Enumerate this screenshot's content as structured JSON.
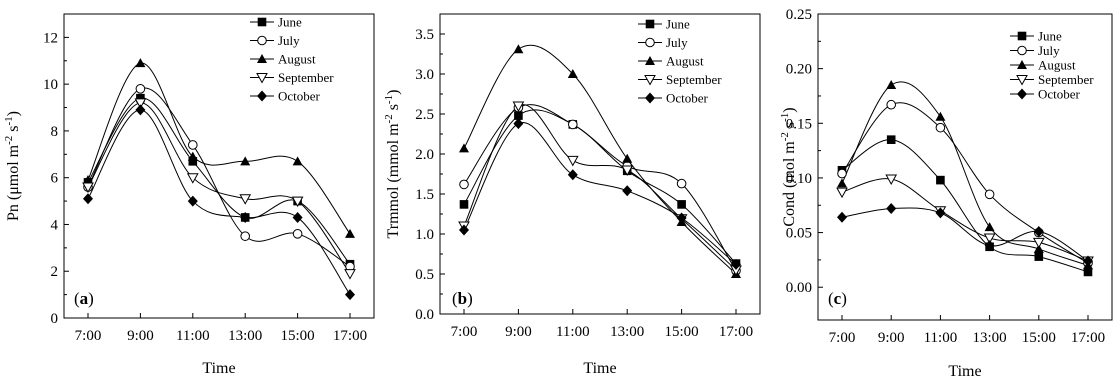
{
  "chart_data": [
    {
      "type": "line",
      "panel_label": "(a)",
      "panel_letter": "a",
      "xlabel": "Time",
      "ylabel": "Pn (μmol m-2 s-1)",
      "ylabel_parts": {
        "base": "Pn (μmol m",
        "sup1": "-2",
        "mid": " s",
        "sup2": "-1",
        "end": ")"
      },
      "categories": [
        "7:00",
        "9:00",
        "11:00",
        "13:00",
        "15:00",
        "17:00"
      ],
      "ylim": [
        0,
        13
      ],
      "yticks": [
        0,
        2,
        4,
        6,
        8,
        10,
        12
      ],
      "ytick_labels": [
        "0",
        "2",
        "4",
        "6",
        "8",
        "10",
        "12"
      ],
      "legend": {
        "position": "top-right"
      },
      "series": [
        {
          "name": "June",
          "marker": "square-filled",
          "values": [
            5.8,
            9.4,
            6.7,
            4.3,
            5.0,
            2.3
          ]
        },
        {
          "name": "July",
          "marker": "circle-open",
          "values": [
            5.6,
            9.8,
            7.4,
            3.5,
            3.6,
            2.2
          ]
        },
        {
          "name": "August",
          "marker": "triangle-up-filled",
          "values": [
            5.9,
            10.9,
            6.9,
            6.7,
            6.7,
            3.6
          ]
        },
        {
          "name": "September",
          "marker": "triangle-down-open",
          "values": [
            5.6,
            9.2,
            6.0,
            5.1,
            5.0,
            1.9
          ]
        },
        {
          "name": "October",
          "marker": "diamond-filled",
          "values": [
            5.1,
            8.9,
            5.0,
            4.3,
            4.3,
            1.0
          ]
        }
      ]
    },
    {
      "type": "line",
      "panel_label": "(b)",
      "panel_letter": "b",
      "xlabel": "Time",
      "ylabel": "Trmmol (mmol m-2 s-1)",
      "ylabel_parts": {
        "base": "Trmmol (mmol m",
        "sup1": "-2",
        "mid": " s",
        "sup2": "-1",
        "end": ")"
      },
      "categories": [
        "7:00",
        "9:00",
        "11:00",
        "13:00",
        "15:00",
        "17:00"
      ],
      "ylim": [
        0,
        3.75
      ],
      "yticks": [
        0.0,
        0.5,
        1.0,
        1.5,
        2.0,
        2.5,
        3.0,
        3.5
      ],
      "ytick_labels": [
        "0.0",
        "0.5",
        "1.0",
        "1.5",
        "2.0",
        "2.5",
        "3.0",
        "3.5"
      ],
      "legend": {
        "position": "top-right"
      },
      "series": [
        {
          "name": "June",
          "marker": "square-filled",
          "values": [
            1.37,
            2.48,
            2.37,
            1.79,
            1.37,
            0.63
          ]
        },
        {
          "name": "July",
          "marker": "circle-open",
          "values": [
            1.62,
            2.58,
            2.37,
            1.85,
            1.63,
            0.54
          ]
        },
        {
          "name": "August",
          "marker": "triangle-up-filled",
          "values": [
            2.07,
            3.31,
            3.0,
            1.94,
            1.15,
            0.5
          ]
        },
        {
          "name": "September",
          "marker": "triangle-down-open",
          "values": [
            1.1,
            2.6,
            1.92,
            1.8,
            1.19,
            0.55
          ]
        },
        {
          "name": "October",
          "marker": "diamond-filled",
          "values": [
            1.05,
            2.38,
            1.74,
            1.54,
            1.2,
            0.62
          ]
        }
      ]
    },
    {
      "type": "line",
      "panel_label": "(c)",
      "panel_letter": "c",
      "xlabel": "Time",
      "ylabel": "Cond (mol m-2 s-1)",
      "ylabel_parts": {
        "base": "Cond (mol m",
        "sup1": "-2",
        "mid": " s",
        "sup2": "-1",
        "end": ")"
      },
      "categories": [
        "7:00",
        "9:00",
        "11:00",
        "13:00",
        "15:00",
        "17:00"
      ],
      "ylim": [
        -0.03,
        0.25
      ],
      "yticks": [
        0.0,
        0.05,
        0.1,
        0.15,
        0.2,
        0.25
      ],
      "ytick_labels": [
        "0.00",
        "0.05",
        "0.10",
        "0.15",
        "0.20",
        "0.25"
      ],
      "legend": {
        "position": "top-right"
      },
      "series": [
        {
          "name": "June",
          "marker": "square-filled",
          "values": [
            0.107,
            0.135,
            0.098,
            0.037,
            0.028,
            0.014
          ]
        },
        {
          "name": "July",
          "marker": "circle-open",
          "values": [
            0.104,
            0.167,
            0.146,
            0.085,
            0.05,
            0.022
          ]
        },
        {
          "name": "August",
          "marker": "triangle-up-filled",
          "values": [
            0.095,
            0.185,
            0.156,
            0.055,
            0.035,
            0.02
          ]
        },
        {
          "name": "September",
          "marker": "triangle-down-open",
          "values": [
            0.087,
            0.099,
            0.07,
            0.045,
            0.041,
            0.024
          ]
        },
        {
          "name": "October",
          "marker": "diamond-filled",
          "values": [
            0.064,
            0.072,
            0.068,
            0.038,
            0.051,
            0.024
          ]
        }
      ]
    }
  ]
}
